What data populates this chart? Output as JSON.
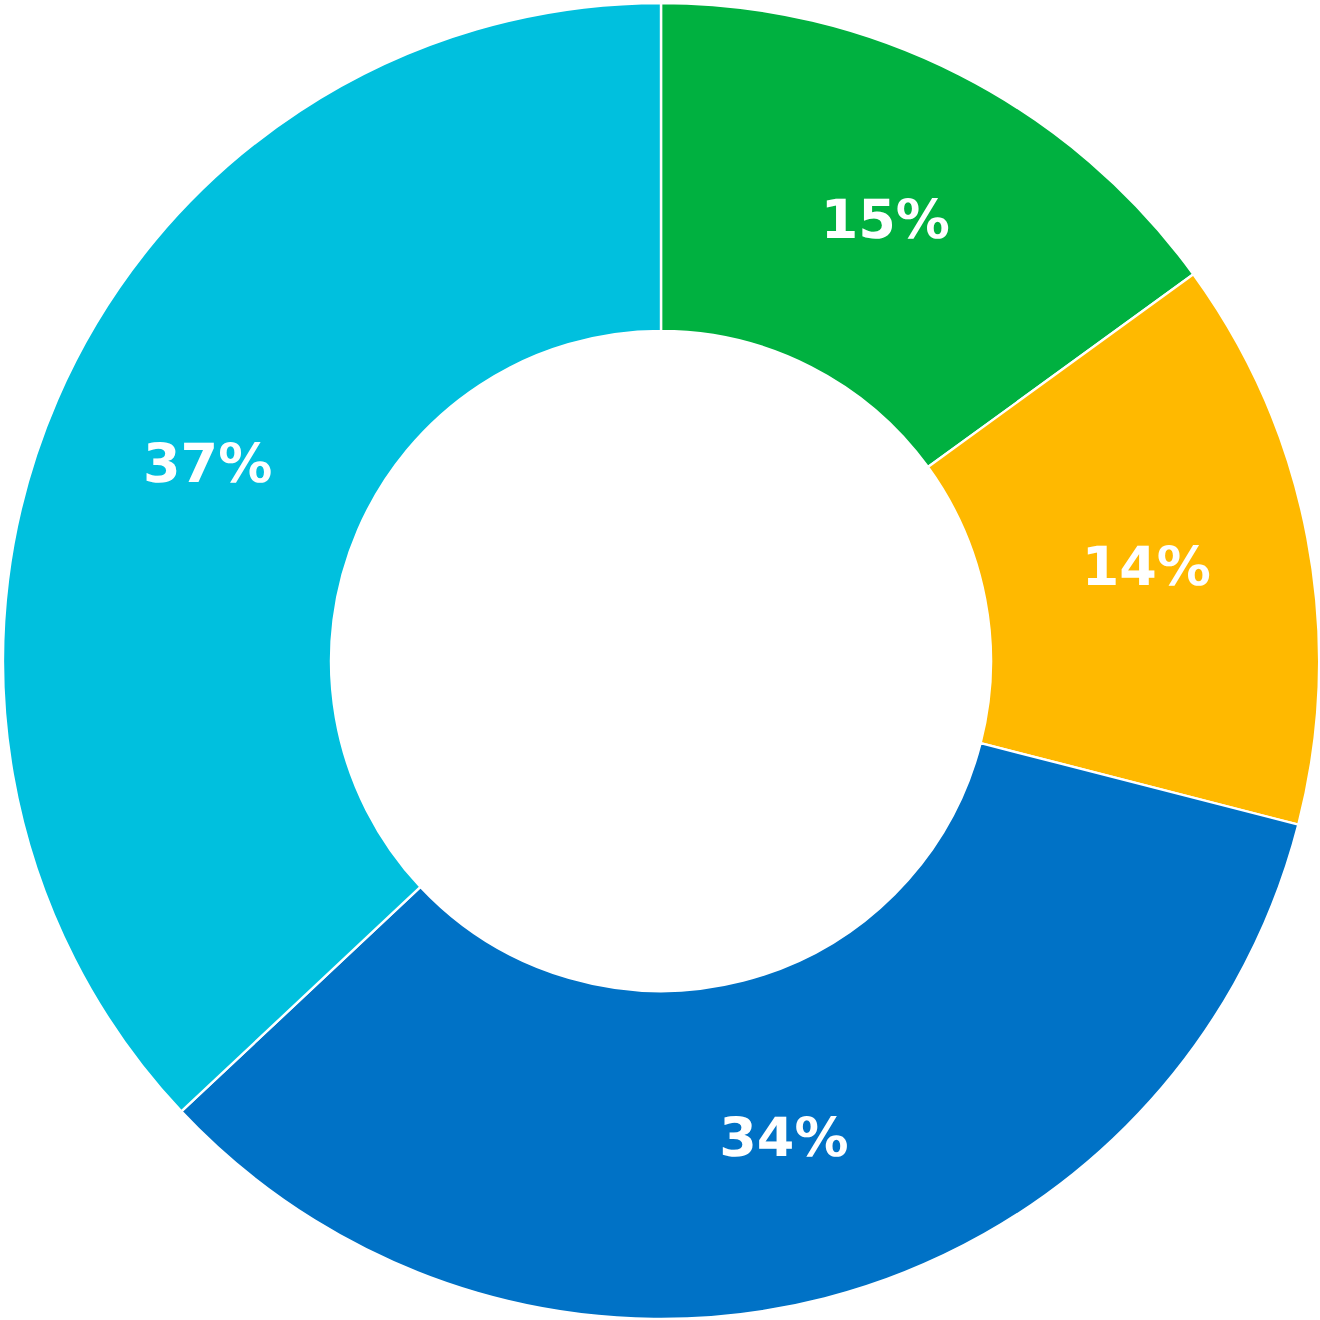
{
  "chart_data": {
    "type": "donut",
    "categories": [
      null,
      null,
      null,
      null
    ],
    "values": [
      15,
      14,
      34,
      37
    ],
    "colors": [
      "#00b140",
      "#ffb900",
      "#0072c6",
      "#00c0de"
    ],
    "value_labels": [
      "15%",
      "14%",
      "34%",
      "37%"
    ]
  }
}
